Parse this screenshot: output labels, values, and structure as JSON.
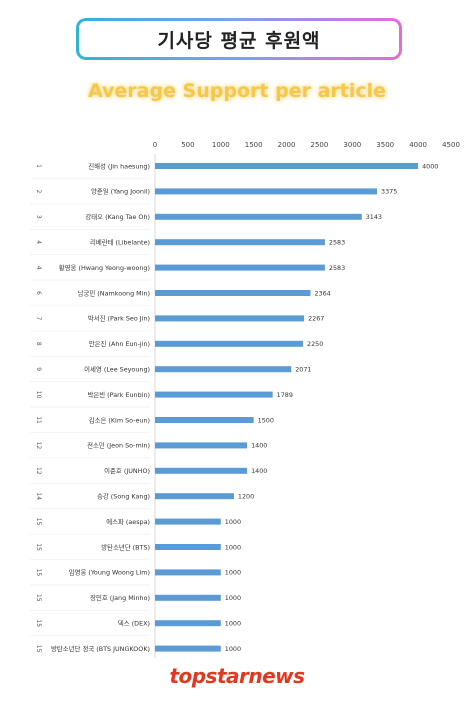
{
  "title": "기사당 평균 후원액",
  "subtitle": "Average Support per article",
  "footer_brand": "topstarnews",
  "colors": {
    "bar": "#5b9bd5",
    "subtitle": "#f6c84a",
    "brand": "#e2381f"
  },
  "chart_data": {
    "type": "bar",
    "orientation": "horizontal",
    "xlim": [
      0,
      4500
    ],
    "ticks": [
      0,
      500,
      1000,
      1500,
      2000,
      2500,
      3000,
      3500,
      4000,
      4500
    ],
    "grid": false,
    "categories": [
      {
        "rank": "1",
        "label": "진해성 (Jin haesung)",
        "value": 4000
      },
      {
        "rank": "2",
        "label": "양준일 (Yang Joonil)",
        "value": 3375
      },
      {
        "rank": "3",
        "label": "강태오 (Kang Tae Oh)",
        "value": 3143
      },
      {
        "rank": "4",
        "label": "리베란테 (Libelante)",
        "value": 2583
      },
      {
        "rank": "4",
        "label": "황영웅 (Hwang Yeong-woong)",
        "value": 2583
      },
      {
        "rank": "6",
        "label": "남궁민 (Namkoong Min)",
        "value": 2364
      },
      {
        "rank": "7",
        "label": "박서진 (Park Seo Jin)",
        "value": 2267
      },
      {
        "rank": "8",
        "label": "안은진 (Ahn Eun-jin)",
        "value": 2250
      },
      {
        "rank": "9",
        "label": "이세영 (Lee Seyoung)",
        "value": 2071
      },
      {
        "rank": "10",
        "label": "박은빈 (Park Eunbin)",
        "value": 1789
      },
      {
        "rank": "11",
        "label": "김소은 (Kim So-eun)",
        "value": 1500
      },
      {
        "rank": "12",
        "label": "전소민 (Jeon So-min)",
        "value": 1400
      },
      {
        "rank": "12",
        "label": "이준호 (JUNHO)",
        "value": 1400
      },
      {
        "rank": "14",
        "label": "송강 (Song Kang)",
        "value": 1200
      },
      {
        "rank": "15",
        "label": "에스파 (aespa)",
        "value": 1000
      },
      {
        "rank": "15",
        "label": "방탄소년단 (BTS)",
        "value": 1000
      },
      {
        "rank": "15",
        "label": "임영웅 (Young Woong Lim)",
        "value": 1000
      },
      {
        "rank": "15",
        "label": "장민호 (Jang Minho)",
        "value": 1000
      },
      {
        "rank": "15",
        "label": "덱스 (DEX)",
        "value": 1000
      },
      {
        "rank": "15",
        "label": "방탄소년단 정국 (BTS JUNGKOOK)",
        "value": 1000
      }
    ]
  }
}
